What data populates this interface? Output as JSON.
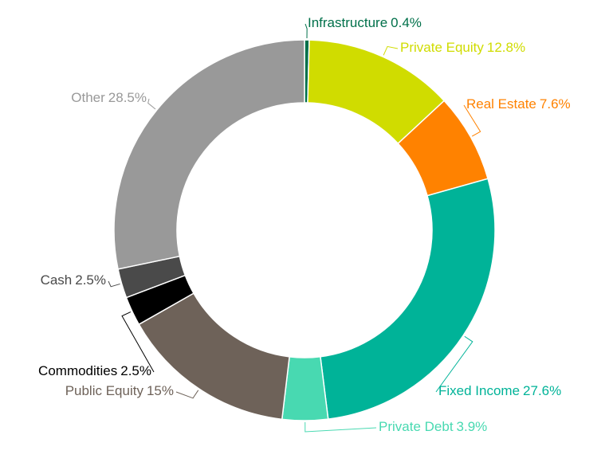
{
  "chart_data": {
    "type": "donut",
    "categories": [
      "Infrastructure",
      "Private Equity",
      "Real Estate",
      "Fixed Income",
      "Private Debt",
      "Public Equity",
      "Commodities",
      "Cash",
      "Other"
    ],
    "values": [
      0.4,
      12.8,
      7.6,
      27.6,
      3.9,
      15,
      2.5,
      2.5,
      28.5
    ],
    "value_labels": [
      "0.4%",
      "12.8%",
      "7.6%",
      "27.6%",
      "3.9%",
      "15%",
      "2.5%",
      "2.5%",
      "28.5%"
    ],
    "colors": [
      "#00704a",
      "#d0dc00",
      "#ff8200",
      "#00b398",
      "#48d9b1",
      "#6e6259",
      "#000000",
      "#4a4a4a",
      "#999999"
    ]
  }
}
